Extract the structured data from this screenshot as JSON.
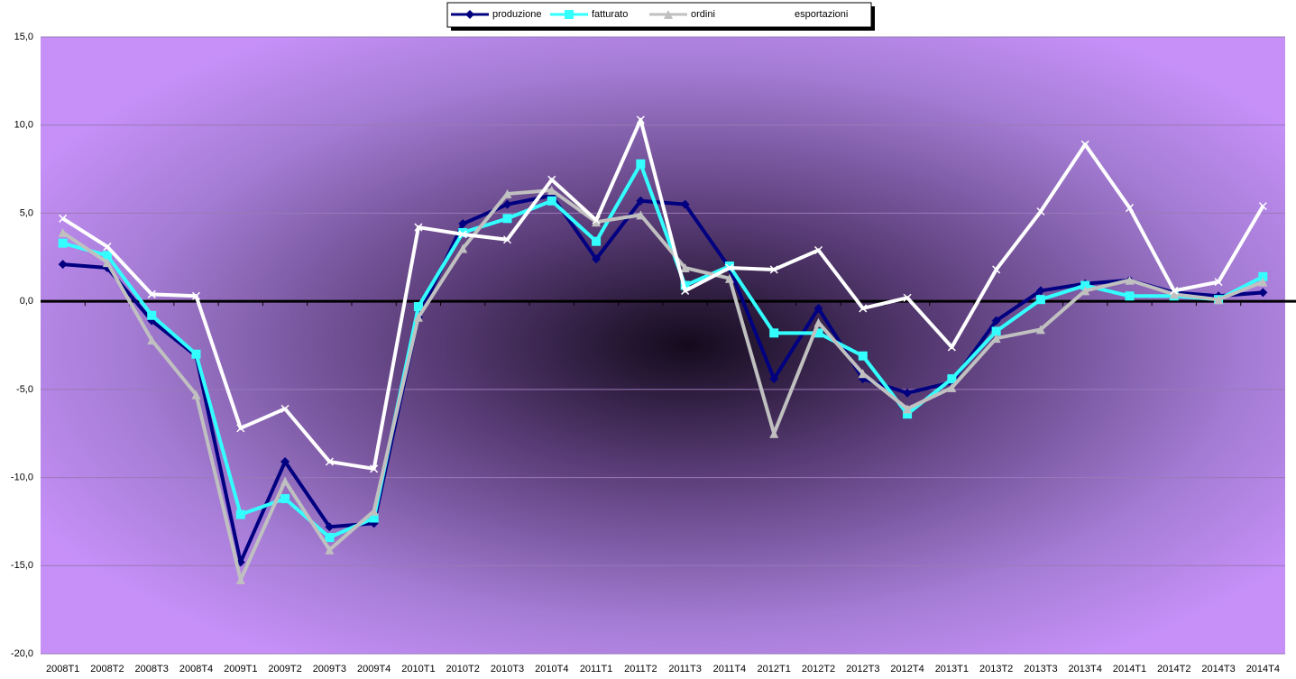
{
  "chart_data": {
    "type": "line",
    "categories": [
      "2008T1",
      "2008T2",
      "2008T3",
      "2008T4",
      "2009T1",
      "2009T2",
      "2009T3",
      "2009T4",
      "2010T1",
      "2010T2",
      "2010T3",
      "2010T4",
      "2011T1",
      "2011T2",
      "2011T3",
      "2011T4",
      "2012T1",
      "2012T2",
      "2012T3",
      "2012T4",
      "2013T1",
      "2013T2",
      "2013T3",
      "2013T4",
      "2014T1",
      "2014T2",
      "2014T3",
      "2014T4"
    ],
    "series": [
      {
        "name": "produzione",
        "color": "#000080",
        "marker": "diamond",
        "values": [
          2.1,
          1.9,
          -1.1,
          -3.1,
          -14.8,
          -9.1,
          -12.8,
          -12.6,
          -0.9,
          4.4,
          5.5,
          6.0,
          2.4,
          5.7,
          5.5,
          1.9,
          -4.4,
          -0.4,
          -4.4,
          -5.2,
          -4.6,
          -1.1,
          0.6,
          1.0,
          1.2,
          0.5,
          0.3,
          0.5
        ]
      },
      {
        "name": "fatturato",
        "color": "#33ffff",
        "marker": "square",
        "values": [
          3.3,
          2.6,
          -0.8,
          -3.0,
          -12.1,
          -11.2,
          -13.4,
          -12.3,
          -0.3,
          3.9,
          4.7,
          5.7,
          3.4,
          7.8,
          0.9,
          2.0,
          -1.8,
          -1.8,
          -3.1,
          -6.4,
          -4.4,
          -1.7,
          0.1,
          0.9,
          0.3,
          0.3,
          0.1,
          1.4
        ]
      },
      {
        "name": "ordini",
        "color": "#c0c0c0",
        "marker": "triangle",
        "values": [
          3.9,
          2.2,
          -2.2,
          -5.3,
          -15.8,
          -10.2,
          -14.1,
          -11.9,
          -0.9,
          3.0,
          6.1,
          6.3,
          4.5,
          4.9,
          1.9,
          1.3,
          -7.5,
          -1.2,
          -4.1,
          -6.1,
          -4.9,
          -2.1,
          -1.6,
          0.6,
          1.2,
          0.4,
          0.1,
          1.1
        ]
      },
      {
        "name": "esportazioni",
        "color": "#ffffff",
        "marker": "x",
        "values": [
          4.7,
          3.1,
          0.4,
          0.3,
          -7.2,
          -6.1,
          -9.1,
          -9.5,
          4.2,
          3.8,
          3.5,
          6.9,
          4.6,
          10.3,
          0.6,
          1.9,
          1.8,
          2.9,
          -0.4,
          0.2,
          -2.6,
          1.8,
          5.1,
          8.9,
          5.3,
          0.6,
          1.1,
          5.4
        ]
      }
    ],
    "ylim": [
      -20,
      15
    ],
    "yticks": [
      {
        "value": -20,
        "label": "-20,0"
      },
      {
        "value": -15,
        "label": "-15,0"
      },
      {
        "value": -10,
        "label": "-10,0"
      },
      {
        "value": -5,
        "label": "-5,0"
      },
      {
        "value": 0,
        "label": "0,0"
      },
      {
        "value": 5,
        "label": "5,0"
      },
      {
        "value": 10,
        "label": "10,0"
      },
      {
        "value": 15,
        "label": "15,0"
      }
    ],
    "grid": true,
    "legend": "top"
  }
}
